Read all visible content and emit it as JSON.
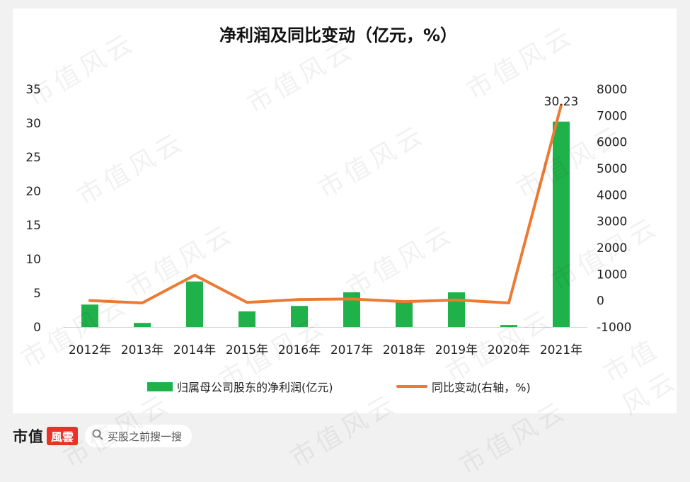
{
  "chart_data": {
    "type": "bar+line",
    "title": "净利润及同比变动（亿元，%）",
    "categories": [
      "2012年",
      "2013年",
      "2014年",
      "2015年",
      "2016年",
      "2017年",
      "2018年",
      "2019年",
      "2020年",
      "2021年"
    ],
    "series": [
      {
        "name": "归属母公司股东的净利润(亿元)",
        "type": "bar",
        "axis": "left",
        "values": [
          3.3,
          0.6,
          6.7,
          2.3,
          3.1,
          5.1,
          3.8,
          5.1,
          0.3,
          30.23
        ]
      },
      {
        "name": "同比变动(右轴，%)",
        "type": "line",
        "axis": "right",
        "values": [
          0,
          -90,
          960,
          -70,
          40,
          60,
          -40,
          20,
          -90,
          7400
        ]
      }
    ],
    "annotations": [
      {
        "category": "2021年",
        "text": "30.23"
      }
    ],
    "ylim_left": [
      0,
      35
    ],
    "yticks_left": [
      "0",
      "5",
      "10",
      "15",
      "20",
      "25",
      "30",
      "35"
    ],
    "ylim_right": [
      -1000,
      8000
    ],
    "yticks_right": [
      "-1000",
      "0",
      "1000",
      "2000",
      "3000",
      "4000",
      "5000",
      "6000",
      "7000",
      "8000"
    ],
    "legend_position": "bottom",
    "colors": {
      "bar": "#1fb24a",
      "line": "#ec7a33"
    }
  },
  "legend": {
    "bar_label": "归属母公司股东的净利润(亿元)",
    "line_label": "同比变动(右轴，%)"
  },
  "footer": {
    "brand": "市值",
    "brand_badge": "風雲",
    "search_placeholder": "买股之前搜一搜",
    "search_icon": "search-icon"
  },
  "watermark": "市值风云"
}
